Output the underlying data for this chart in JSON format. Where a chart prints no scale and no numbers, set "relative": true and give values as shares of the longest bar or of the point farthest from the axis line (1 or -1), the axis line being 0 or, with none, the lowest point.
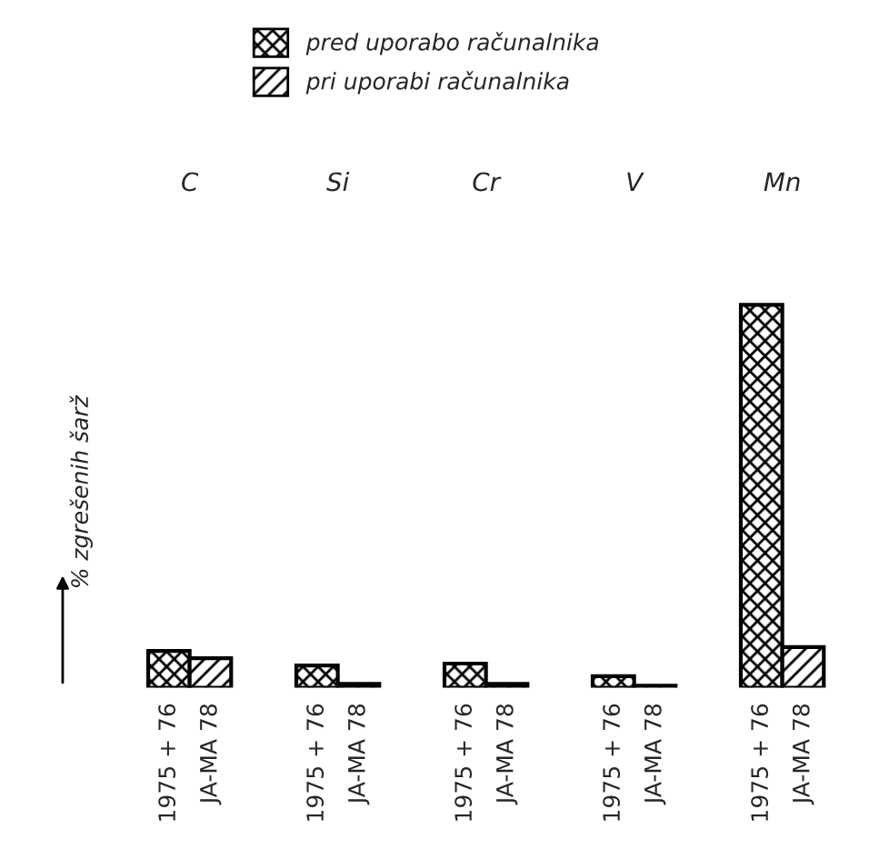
{
  "chart_data": {
    "type": "bar",
    "relative": true,
    "categories": [
      "C",
      "Si",
      "Cr",
      "V",
      "Mn"
    ],
    "ylabel": "% zgrešenih šarž",
    "series": [
      {
        "name": "pred uporabo računalnika",
        "color": "#000000",
        "values": [
          0.096,
          0.058,
          0.063,
          0.03,
          1
        ]
      },
      {
        "name": "pri uporabi računalnika",
        "color": "#000000",
        "values": [
          0.077,
          0.01,
          0.01,
          0.005,
          0.106
        ]
      }
    ],
    "annotations": [
      "1975 + 76",
      "JA-MA 78",
      "1975 + 76",
      "JA-MA 78",
      "1975 + 76",
      "JA-MA 78",
      "1975 + 76",
      "JA-MA 78",
      "1975 + 76",
      "JA-MA 78"
    ],
    "legend": "top",
    "grid": false
  }
}
